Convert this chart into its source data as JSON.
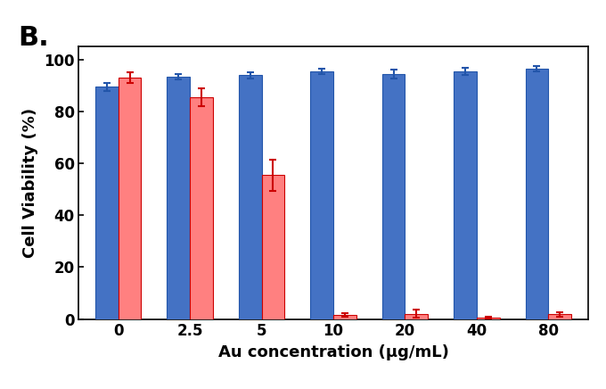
{
  "categories": [
    "0",
    "2.5",
    "5",
    "10",
    "20",
    "40",
    "80"
  ],
  "blue_values": [
    89.5,
    93.5,
    94.0,
    95.5,
    94.5,
    95.5,
    96.5
  ],
  "red_values": [
    93.0,
    85.5,
    55.5,
    1.5,
    2.0,
    0.5,
    1.8
  ],
  "blue_errors": [
    1.5,
    1.0,
    1.2,
    1.0,
    1.8,
    1.5,
    1.0
  ],
  "red_errors": [
    2.0,
    3.5,
    6.0,
    0.8,
    1.5,
    0.4,
    0.8
  ],
  "blue_color": "#4472C4",
  "red_color": "#FF8080",
  "red_edge_color": "#CC0000",
  "blue_edge_color": "#2255AA",
  "ylabel": "Cell Viability (%)",
  "xlabel": "Au concentration (μg/mL)",
  "panel_label": "B.",
  "ylim": [
    0,
    105
  ],
  "yticks": [
    0,
    20,
    40,
    60,
    80,
    100
  ],
  "bar_width": 0.32,
  "label_fontsize": 13,
  "tick_fontsize": 12,
  "panel_label_fontsize": 22,
  "background_color": "#FFFFFF",
  "error_capsize": 3,
  "error_linewidth": 1.5
}
